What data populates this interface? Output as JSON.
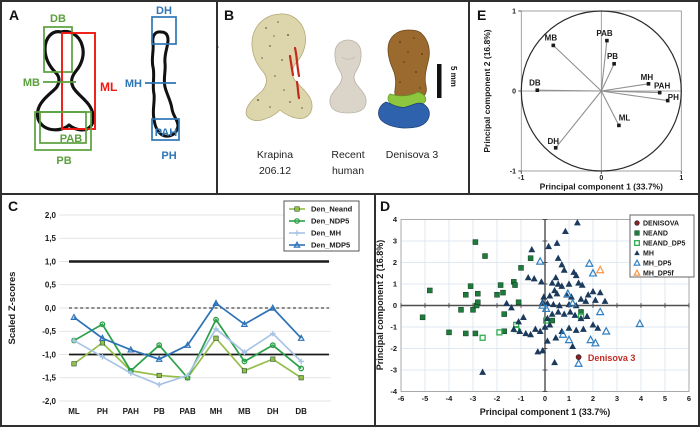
{
  "figure": {
    "panel_labels": {
      "a": "A",
      "b": "B",
      "c": "C",
      "d": "D",
      "e": "E"
    }
  },
  "panel_a": {
    "colors": {
      "green": "#5aa03c",
      "red": "#f01810",
      "blue": "#2e76b5",
      "outline": "#111111"
    },
    "left_bone_labels": {
      "db": "DB",
      "mb": "MB",
      "ml": "ML",
      "pab": "PAB",
      "pb": "PB"
    },
    "right_bone_labels": {
      "dh": "DH",
      "mh": "MH",
      "pah": "PAH",
      "ph": "PH"
    }
  },
  "panel_b": {
    "specimens": [
      {
        "line1": "Krapina",
        "line2": "206.12"
      },
      {
        "line1": "Recent",
        "line2": "human"
      },
      {
        "line1": "Denisova 3",
        "line2": ""
      }
    ],
    "scale_bar_label": "5 mm"
  },
  "chart_data": [
    {
      "panel": "C",
      "type": "line",
      "title": "",
      "xlabel": "",
      "ylabel": "Scaled Z-scores",
      "ylim": [
        -2.0,
        2.0
      ],
      "ytick_values": [
        2.0,
        1.5,
        1.0,
        0.5,
        0.0,
        -0.5,
        -1.0,
        -1.5,
        -2.0
      ],
      "ytick_labels": [
        "2,0",
        "1,5",
        "1,0",
        "0,5",
        "0,0",
        "-0,5",
        "-1,0",
        "-1,5",
        "-2,0"
      ],
      "categories": [
        "ML",
        "PH",
        "PAH",
        "PB",
        "PAB",
        "MH",
        "MB",
        "DH",
        "DB"
      ],
      "grid": true,
      "legend_position": "top-right",
      "reference_lines": [
        {
          "y": 1.0,
          "style": "solid",
          "width": 2.6
        },
        {
          "y": 0.0,
          "style": "dashed",
          "width": 1.1
        },
        {
          "y": -1.0,
          "style": "solid",
          "width": 1.8
        }
      ],
      "series": [
        {
          "name": "Den_Neand",
          "color": "#94bd4a",
          "marker": "square",
          "values": [
            -1.2,
            -0.75,
            -1.35,
            -1.45,
            -1.5,
            -0.65,
            -1.35,
            -1.1,
            -1.5
          ]
        },
        {
          "name": "Den_NDP5",
          "color": "#2ba048",
          "marker": "circle-open",
          "values": [
            -0.7,
            -0.35,
            -1.35,
            -0.8,
            -1.5,
            -0.25,
            -1.15,
            -0.8,
            -1.3
          ]
        },
        {
          "name": "Den_MH",
          "color": "#a8c4e4",
          "marker": "plus",
          "values": [
            -0.7,
            -1.05,
            -1.4,
            -1.65,
            -1.45,
            -0.45,
            -0.95,
            -0.55,
            -1.15
          ]
        },
        {
          "name": "Den_MDP5",
          "color": "#2d72b8",
          "marker": "triangle-open",
          "values": [
            -0.2,
            -0.65,
            -0.9,
            -1.1,
            -0.8,
            0.1,
            -0.35,
            0.0,
            -0.65
          ]
        }
      ]
    },
    {
      "panel": "D",
      "type": "scatter",
      "xlabel": "Principal component 1 (33.7%)",
      "ylabel": "Principal component 2 (16.8%)",
      "xlim": [
        -6,
        6
      ],
      "ylim": [
        -4,
        4
      ],
      "xticks": [
        -6,
        -5,
        -4,
        -3,
        -2,
        -1,
        0,
        1,
        2,
        3,
        4,
        5,
        6
      ],
      "yticks": [
        4,
        3,
        2,
        1,
        0,
        -1,
        -2,
        -3,
        -4
      ],
      "grid": true,
      "legend_position": "top-right",
      "annotation": {
        "text": "Denisova 3",
        "x": 1.62,
        "y": -2.45,
        "color": "#bf2e22"
      },
      "series": [
        {
          "name": "DENISOVA",
          "marker": "circle",
          "color": "#8c1f28",
          "points": [
            [
              1.4,
              -2.4
            ]
          ]
        },
        {
          "name": "NEAND",
          "marker": "square",
          "color": "#1e7b3c",
          "points": [
            [
              -4.8,
              0.7
            ],
            [
              -5.1,
              -0.55
            ],
            [
              -4.0,
              -1.25
            ],
            [
              -3.5,
              -0.2
            ],
            [
              -3.3,
              0.5
            ],
            [
              -3.3,
              -1.3
            ],
            [
              -3.1,
              0.9
            ],
            [
              -3.0,
              -0.2
            ],
            [
              -2.9,
              2.95
            ],
            [
              -2.9,
              -1.3
            ],
            [
              -2.85,
              0.0
            ],
            [
              -2.8,
              0.55
            ],
            [
              -2.8,
              0.15
            ],
            [
              -2.5,
              2.3
            ],
            [
              -2.0,
              0.5
            ],
            [
              -1.85,
              0.95
            ],
            [
              -1.75,
              0.6
            ],
            [
              -1.7,
              -0.4
            ],
            [
              -1.7,
              -1.2
            ],
            [
              -1.3,
              1.1
            ],
            [
              -1.25,
              0.95
            ],
            [
              -1.0,
              1.75
            ],
            [
              -1.1,
              0.15
            ],
            [
              -0.6,
              2.2
            ],
            [
              0.3,
              -0.7
            ],
            [
              1.5,
              -0.3
            ]
          ]
        },
        {
          "name": "NEAND_DP5",
          "marker": "square-open",
          "color": "#2fae4e",
          "points": [
            [
              -2.6,
              -1.5
            ],
            [
              -1.9,
              -1.25
            ],
            [
              -1.2,
              -0.9
            ],
            [
              -1.2,
              -1.1
            ],
            [
              0.05,
              -0.7
            ],
            [
              1.5,
              -0.5
            ]
          ]
        },
        {
          "name": "MH",
          "marker": "triangle",
          "color": "#1b3a5c",
          "points": [
            [
              1.35,
              3.85
            ],
            [
              0.85,
              3.45
            ],
            [
              0.5,
              2.9
            ],
            [
              0.15,
              2.75
            ],
            [
              -0.55,
              2.6
            ],
            [
              0.55,
              2.2
            ],
            [
              0.7,
              1.9
            ],
            [
              0.8,
              1.65
            ],
            [
              1.2,
              1.55
            ],
            [
              1.3,
              1.4
            ],
            [
              0.45,
              1.3
            ],
            [
              -0.7,
              1.3
            ],
            [
              -0.45,
              1.25
            ],
            [
              -0.15,
              1.1
            ],
            [
              0.3,
              1.05
            ],
            [
              0.55,
              1.0
            ],
            [
              0.7,
              0.9
            ],
            [
              1.0,
              1.0
            ],
            [
              1.4,
              1.05
            ],
            [
              1.55,
              0.95
            ],
            [
              2.0,
              0.65
            ],
            [
              2.3,
              0.6
            ],
            [
              1.8,
              0.5
            ],
            [
              0.4,
              0.7
            ],
            [
              0.5,
              0.55
            ],
            [
              0.2,
              0.45
            ],
            [
              -0.05,
              0.4
            ],
            [
              0.9,
              0.5
            ],
            [
              1.1,
              0.4
            ],
            [
              1.5,
              0.3
            ],
            [
              1.7,
              0.2
            ],
            [
              2.1,
              0.25
            ],
            [
              2.5,
              0.2
            ],
            [
              -0.1,
              0.15
            ],
            [
              0.1,
              0.1
            ],
            [
              0.35,
              0.05
            ],
            [
              0.6,
              0.0
            ],
            [
              1.0,
              0.05
            ],
            [
              1.3,
              0.0
            ],
            [
              -1.6,
              0.1
            ],
            [
              -1.4,
              -0.1
            ],
            [
              -0.9,
              -0.55
            ],
            [
              -1.1,
              -0.75
            ],
            [
              -1.3,
              -1.1
            ],
            [
              -1.05,
              -1.2
            ],
            [
              -0.8,
              -1.3
            ],
            [
              -0.6,
              -1.35
            ],
            [
              -0.4,
              -1.1
            ],
            [
              -0.2,
              -1.2
            ],
            [
              0.0,
              -1.0
            ],
            [
              0.2,
              -0.9
            ],
            [
              0.1,
              -0.6
            ],
            [
              0.3,
              -0.4
            ],
            [
              0.55,
              -0.3
            ],
            [
              0.8,
              -0.4
            ],
            [
              1.05,
              -0.3
            ],
            [
              1.25,
              -0.45
            ],
            [
              1.5,
              -0.6
            ],
            [
              1.75,
              -0.5
            ],
            [
              2.0,
              -0.9
            ],
            [
              2.2,
              -1.05
            ],
            [
              1.6,
              -1.1
            ],
            [
              1.3,
              -1.15
            ],
            [
              1.0,
              -1.05
            ],
            [
              0.7,
              -1.2
            ],
            [
              0.45,
              -1.5
            ],
            [
              0.1,
              -1.65
            ],
            [
              -0.1,
              -2.1
            ],
            [
              -0.3,
              -2.15
            ],
            [
              0.4,
              -2.65
            ],
            [
              -2.6,
              -3.1
            ],
            [
              1.15,
              -1.9
            ]
          ]
        },
        {
          "name": "MH_DP5",
          "marker": "triangle-open",
          "color": "#2f7fc1",
          "points": [
            [
              -0.2,
              2.05
            ],
            [
              1.85,
              1.95
            ],
            [
              2.0,
              1.5
            ],
            [
              0.95,
              0.55
            ],
            [
              -0.1,
              0.0
            ],
            [
              0.05,
              -0.15
            ],
            [
              1.15,
              0.1
            ],
            [
              2.3,
              -0.3
            ],
            [
              3.95,
              -0.85
            ],
            [
              2.55,
              -1.2
            ],
            [
              1.9,
              -1.6
            ],
            [
              1.0,
              -1.6
            ],
            [
              0.75,
              -1.35
            ],
            [
              2.1,
              -1.75
            ],
            [
              1.4,
              -2.7
            ]
          ]
        },
        {
          "name": "MH_DP5f",
          "marker": "triangle-open",
          "color": "#f79443",
          "points": [
            [
              2.3,
              1.65
            ]
          ]
        }
      ]
    },
    {
      "panel": "E",
      "type": "scatter",
      "subtype": "pca-loadings",
      "xlabel": "Principal component 1 (33.7%)",
      "ylabel": "Principal component 2 (16.8%)",
      "xlim": [
        -1,
        1
      ],
      "ylim": [
        -1,
        1
      ],
      "xticks": [
        -1,
        0,
        1
      ],
      "yticks": [
        1,
        0,
        -1
      ],
      "unit_circle": true,
      "variables": [
        {
          "label": "MB",
          "x": -0.6,
          "y": 0.57,
          "lx": -0.63,
          "ly": 0.66
        },
        {
          "label": "PAB",
          "x": 0.07,
          "y": 0.63,
          "lx": 0.04,
          "ly": 0.72
        },
        {
          "label": "PB",
          "x": 0.16,
          "y": 0.34,
          "lx": 0.14,
          "ly": 0.43
        },
        {
          "label": "DB",
          "x": -0.8,
          "y": 0.01,
          "lx": -0.83,
          "ly": 0.1
        },
        {
          "label": "MH",
          "x": 0.59,
          "y": 0.09,
          "lx": 0.57,
          "ly": 0.17
        },
        {
          "label": "PAH",
          "x": 0.73,
          "y": -0.02,
          "lx": 0.76,
          "ly": 0.06
        },
        {
          "label": "PH",
          "x": 0.83,
          "y": -0.12,
          "lx": 0.9,
          "ly": -0.08
        },
        {
          "label": "ML",
          "x": 0.22,
          "y": -0.43,
          "lx": 0.29,
          "ly": -0.34
        },
        {
          "label": "DH",
          "x": -0.57,
          "y": -0.71,
          "lx": -0.6,
          "ly": -0.63
        }
      ]
    }
  ]
}
